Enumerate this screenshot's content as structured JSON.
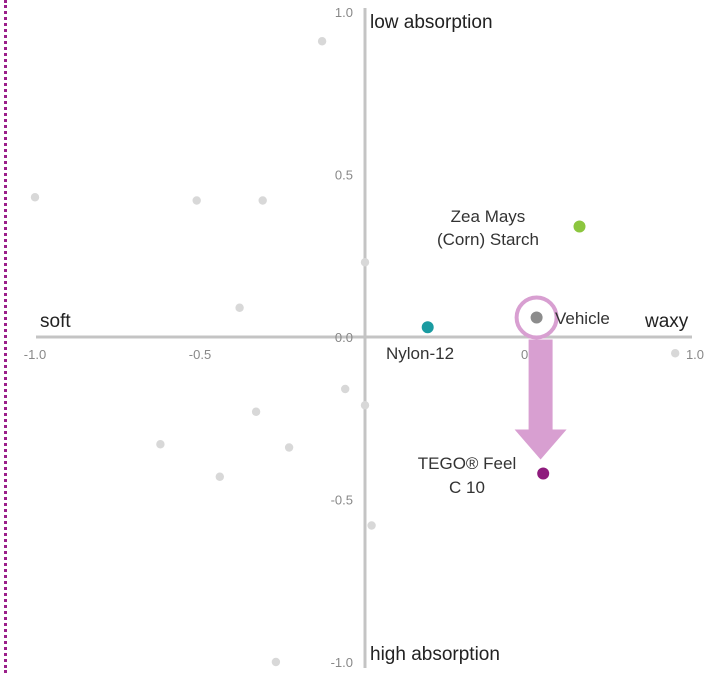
{
  "chart_data": {
    "type": "scatter",
    "title": "",
    "xlabel": "",
    "ylabel": "",
    "xlim": [
      -1.0,
      1.0
    ],
    "ylim": [
      -1.0,
      1.0
    ],
    "grid": false,
    "x_ticks": [
      {
        "value": -1.0,
        "label": "-1.0"
      },
      {
        "value": -0.5,
        "label": "-0.5"
      },
      {
        "value": 0.0,
        "label": "0.0"
      },
      {
        "value": 0.5,
        "label": "0.5"
      },
      {
        "value": 1.0,
        "label": "1.0"
      }
    ],
    "y_ticks": [
      {
        "value": 1.0,
        "label": "1.0"
      },
      {
        "value": 0.5,
        "label": "0.5"
      },
      {
        "value": 0.0,
        "label": "0.0"
      },
      {
        "value": -0.5,
        "label": "-0.5"
      },
      {
        "value": -1.0,
        "label": "-1.0"
      }
    ],
    "axis_ends": {
      "x_negative": "soft",
      "x_positive": "waxy",
      "y_positive": "low absorption",
      "y_negative": "high absorption"
    },
    "background_points": [
      {
        "x": -0.13,
        "y": 0.91
      },
      {
        "x": -1.0,
        "y": 0.43
      },
      {
        "x": -0.51,
        "y": 0.42
      },
      {
        "x": -0.31,
        "y": 0.42
      },
      {
        "x": 0.0,
        "y": 0.23
      },
      {
        "x": -0.38,
        "y": 0.09
      },
      {
        "x": 0.52,
        "y": -0.08
      },
      {
        "x": 0.94,
        "y": -0.05
      },
      {
        "x": -0.06,
        "y": -0.16
      },
      {
        "x": 0.0,
        "y": -0.21
      },
      {
        "x": -0.33,
        "y": -0.23
      },
      {
        "x": -0.62,
        "y": -0.33
      },
      {
        "x": -0.23,
        "y": -0.34
      },
      {
        "x": -0.44,
        "y": -0.43
      },
      {
        "x": 0.02,
        "y": -0.58
      },
      {
        "x": -0.27,
        "y": -1.0
      }
    ],
    "background_color": "#d8d8d8",
    "points": [
      {
        "name": "Zea Mays",
        "name2": "(Corn) Starch",
        "x": 0.65,
        "y": 0.34,
        "color": "#8cc63f"
      },
      {
        "name": "Vehicle",
        "x": 0.52,
        "y": 0.06,
        "color": "#8c8c8c"
      },
      {
        "name": "Nylon-12",
        "x": 0.19,
        "y": 0.03,
        "color": "#1a9ba1"
      },
      {
        "name": "TEGO® Feel",
        "name2": "C 10",
        "x": 0.54,
        "y": -0.42,
        "color": "#8e1b7d"
      }
    ],
    "arrow": {
      "from": "Vehicle",
      "to": "TEGO® Feel",
      "color": "#d89fd1"
    }
  }
}
